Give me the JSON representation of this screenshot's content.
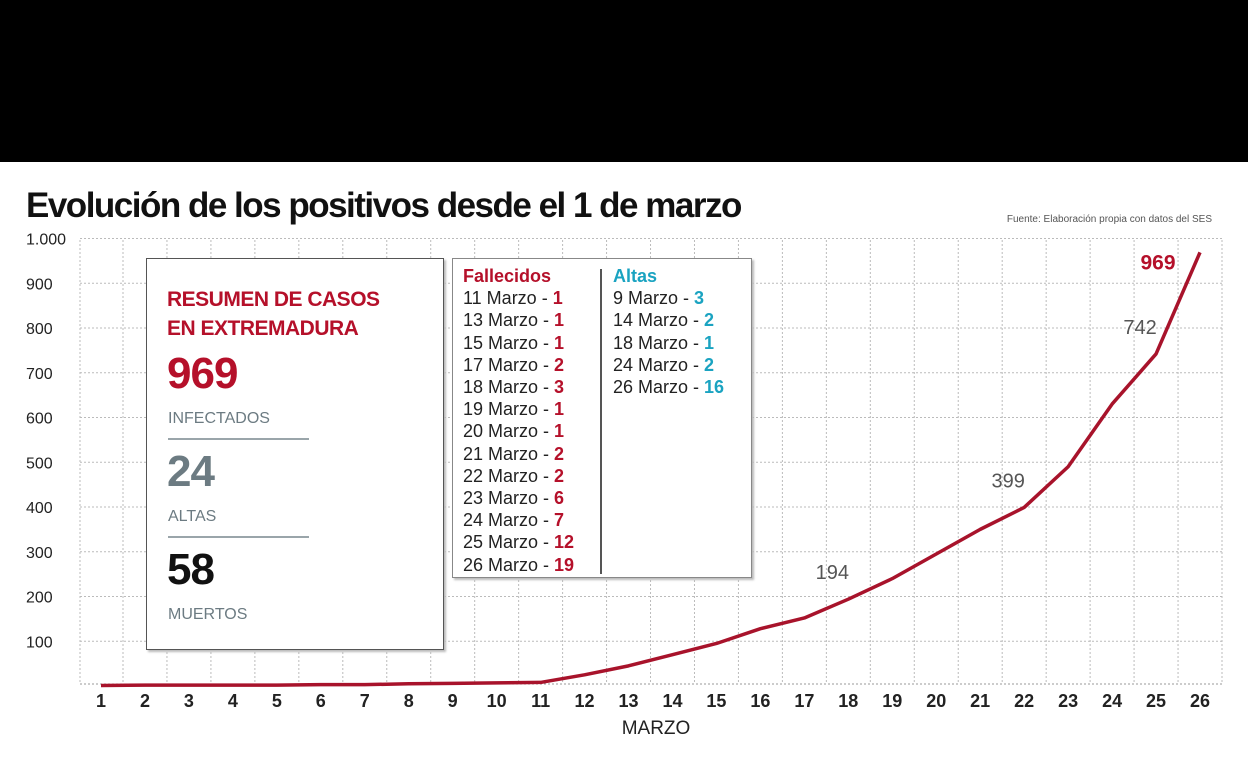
{
  "title": "Evolución de los positivos desde el 1 de marzo",
  "source": "Fuente: Elaboración propia con datos del SES",
  "summary": {
    "heading_line1": "RESUMEN DE CASOS",
    "heading_line2": "EN EXTREMADURA",
    "infected": "969",
    "infected_label": "INFECTADOS",
    "recovered": "24",
    "recovered_label": "ALTAS",
    "deaths": "58",
    "deaths_label": "MUERTOS"
  },
  "fallecidos": {
    "title": "Fallecidos",
    "items": [
      {
        "date": "11 Marzo - ",
        "n": "1"
      },
      {
        "date": "13 Marzo - ",
        "n": "1"
      },
      {
        "date": "15 Marzo - ",
        "n": "1"
      },
      {
        "date": "17 Marzo - ",
        "n": "2"
      },
      {
        "date": "18 Marzo - ",
        "n": "3"
      },
      {
        "date": "19 Marzo - ",
        "n": "1"
      },
      {
        "date": "20 Marzo - ",
        "n": "1"
      },
      {
        "date": "21 Marzo - ",
        "n": "2"
      },
      {
        "date": "22 Marzo - ",
        "n": "2"
      },
      {
        "date": "23 Marzo - ",
        "n": "6"
      },
      {
        "date": "24 Marzo - ",
        "n": "7"
      },
      {
        "date": "25 Marzo - ",
        "n": "12"
      },
      {
        "date": "26 Marzo - ",
        "n": "19"
      }
    ]
  },
  "altas": {
    "title": "Altas",
    "items": [
      {
        "date": "9 Marzo - ",
        "n": "3"
      },
      {
        "date": "14 Marzo - ",
        "n": "2"
      },
      {
        "date": "18 Marzo - ",
        "n": "1"
      },
      {
        "date": "24 Marzo - ",
        "n": "2"
      },
      {
        "date": "26 Marzo - ",
        "n": "16"
      }
    ]
  },
  "colors": {
    "line": "#a8132b",
    "red": "#b5102a",
    "blue": "#1aa3c1"
  },
  "chart_data": {
    "type": "line",
    "xlabel": "MARZO",
    "ylabel": "",
    "x": [
      1,
      2,
      3,
      4,
      5,
      6,
      7,
      8,
      9,
      10,
      11,
      12,
      13,
      14,
      15,
      16,
      17,
      18,
      19,
      20,
      21,
      22,
      23,
      24,
      25,
      26
    ],
    "series": [
      {
        "name": "Positivos",
        "values": [
          1,
          2,
          2,
          2,
          2,
          3,
          3,
          5,
          6,
          7,
          8,
          25,
          45,
          70,
          95,
          128,
          152,
          194,
          240,
          295,
          350,
          399,
          490,
          630,
          742,
          969
        ]
      }
    ],
    "yticks": [
      100,
      200,
      300,
      400,
      500,
      600,
      700,
      800,
      900,
      1000
    ],
    "ytick_labels": [
      "100",
      "200",
      "300",
      "400",
      "500",
      "600",
      "700",
      "800",
      "900",
      "1.000"
    ],
    "ylim": [
      0,
      1000
    ],
    "grid": true,
    "annotations": [
      {
        "x": 18,
        "text": "194"
      },
      {
        "x": 22,
        "text": "399"
      },
      {
        "x": 25,
        "text": "742"
      },
      {
        "x": 26,
        "text": "969"
      }
    ]
  }
}
